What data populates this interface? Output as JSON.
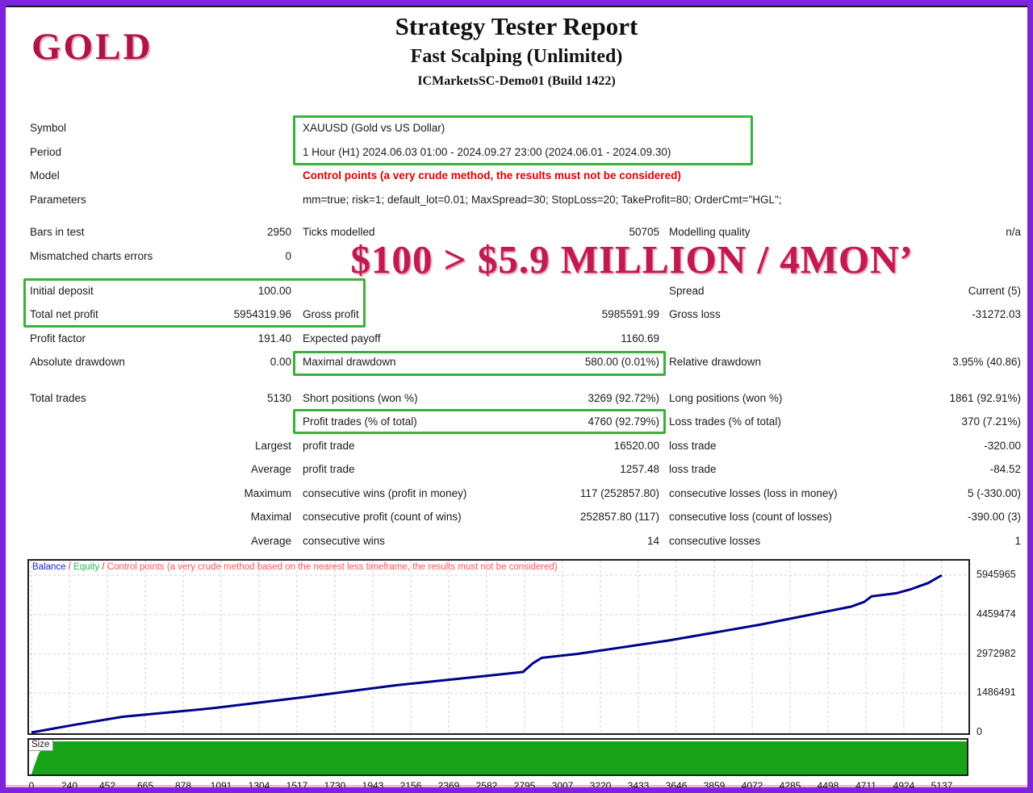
{
  "watermarks": {
    "corner": "GOLD",
    "stamp": "$100 > $5.9 MILLION / 4MON’"
  },
  "header": {
    "title": "Strategy Tester Report",
    "subtitle": "Fast Scalping (Unlimited)",
    "server": "ICMarketsSC-Demo01 (Build 1422)"
  },
  "info": {
    "symbol_label": "Symbol",
    "symbol": "XAUUSD (Gold vs US Dollar)",
    "period_label": "Period",
    "period": "1 Hour (H1) 2024.06.03 01:00 - 2024.09.27 23:00 (2024.06.01 - 2024.09.30)",
    "model_label": "Model",
    "model": "Control points (a very crude method, the results must not be considered)",
    "parameters_label": "Parameters",
    "parameters": "mm=true; risk=1; default_lot=0.01; MaxSpread=30; StopLoss=20; TakeProfit=80; OrderCmt=\"HGL\";"
  },
  "stats": {
    "bars_in_test": {
      "label": "Bars in test",
      "value": "2950"
    },
    "ticks_modelled": {
      "label": "Ticks modelled",
      "value": "50705"
    },
    "modelling_quality": {
      "label": "Modelling quality",
      "value": "n/a"
    },
    "mismatched": {
      "label": "Mismatched charts errors",
      "value": "0"
    },
    "initial_deposit": {
      "label": "Initial deposit",
      "value": "100.00"
    },
    "spread": {
      "label": "Spread",
      "value": "Current (5)"
    },
    "total_net_profit": {
      "label": "Total net profit",
      "value": "5954319.96"
    },
    "gross_profit": {
      "label": "Gross profit",
      "value": "5985591.99"
    },
    "gross_loss": {
      "label": "Gross loss",
      "value": "-31272.03"
    },
    "profit_factor": {
      "label": "Profit factor",
      "value": "191.40"
    },
    "expected_payoff": {
      "label": "Expected payoff",
      "value": "1160.69"
    },
    "absolute_drawdown": {
      "label": "Absolute drawdown",
      "value": "0.00"
    },
    "maximal_drawdown": {
      "label": "Maximal drawdown",
      "value": "580.00 (0.01%)"
    },
    "relative_drawdown": {
      "label": "Relative drawdown",
      "value": "3.95% (40.86)"
    },
    "total_trades": {
      "label": "Total trades",
      "value": "5130"
    },
    "short_positions": {
      "label": "Short positions (won %)",
      "value": "3269 (92.72%)"
    },
    "long_positions": {
      "label": "Long positions (won %)",
      "value": "1861 (92.91%)"
    },
    "profit_trades": {
      "label": "Profit trades (% of total)",
      "value": "4760 (92.79%)"
    },
    "loss_trades": {
      "label": "Loss trades (% of total)",
      "value": "370 (7.21%)"
    },
    "largest": {
      "label": "Largest",
      "win_label": "profit trade",
      "win_value": "16520.00",
      "loss_label": "loss trade",
      "loss_value": "-320.00"
    },
    "average": {
      "label": "Average",
      "win_label": "profit trade",
      "win_value": "1257.48",
      "loss_label": "loss trade",
      "loss_value": "-84.52"
    },
    "maximum": {
      "label": "Maximum",
      "win_label": "consecutive wins (profit in money)",
      "win_value": "117 (252857.80)",
      "loss_label": "consecutive losses (loss in money)",
      "loss_value": "5 (-330.00)"
    },
    "maximal": {
      "label": "Maximal",
      "win_label": "consecutive profit (count of wins)",
      "win_value": "252857.80 (117)",
      "loss_label": "consecutive loss (count of losses)",
      "loss_value": "-390.00 (3)"
    },
    "avg_consecutive": {
      "label": "Average",
      "win_label": "consecutive wins",
      "win_value": "14",
      "loss_label": "consecutive losses",
      "loss_value": "1"
    }
  },
  "chart_data": {
    "type": "line",
    "legend": [
      {
        "text": "Balance",
        "color": "#2222cc"
      },
      {
        "text": "Equity",
        "color": "#22bb55"
      },
      {
        "text": "Control points (a very crude method based on the nearest less timeframe, the results must not be considered)",
        "color": "#ff5555"
      }
    ],
    "legend_separator_color": "#cc3333",
    "y_ticks": [
      5945965,
      4459474,
      2972982,
      1486491,
      0
    ],
    "x_ticks": [
      0,
      240,
      452,
      665,
      878,
      1091,
      1304,
      1517,
      1730,
      1943,
      2156,
      2369,
      2582,
      2795,
      3007,
      3220,
      3433,
      3646,
      3859,
      4072,
      4285,
      4498,
      4711,
      4924,
      5137
    ],
    "xlim": [
      0,
      5137
    ],
    "ylim": [
      0,
      6500000
    ],
    "grid": "dashed",
    "line_color": "#00008b",
    "balance_series": [
      [
        0,
        100
      ],
      [
        250,
        297300
      ],
      [
        514,
        594600
      ],
      [
        1027,
        921600
      ],
      [
        1541,
        1337800
      ],
      [
        2055,
        1783800
      ],
      [
        2569,
        2140500
      ],
      [
        2774,
        2289200
      ],
      [
        2830,
        2620000
      ],
      [
        2880,
        2824300
      ],
      [
        3083,
        2973000
      ],
      [
        3597,
        3478400
      ],
      [
        4110,
        4073000
      ],
      [
        4624,
        4756800
      ],
      [
        4700,
        4935200
      ],
      [
        4740,
        5143300
      ],
      [
        4880,
        5262200
      ],
      [
        4960,
        5410800
      ],
      [
        5060,
        5648700
      ],
      [
        5137,
        5945965
      ]
    ],
    "size_panel": {
      "label": "Size",
      "fill_color": "#18a318",
      "profile": [
        [
          0,
          0.02
        ],
        [
          15,
          0.25
        ],
        [
          40,
          0.62
        ],
        [
          75,
          0.93
        ],
        [
          110,
          1.0
        ],
        [
          5137,
          1.0
        ]
      ]
    }
  }
}
